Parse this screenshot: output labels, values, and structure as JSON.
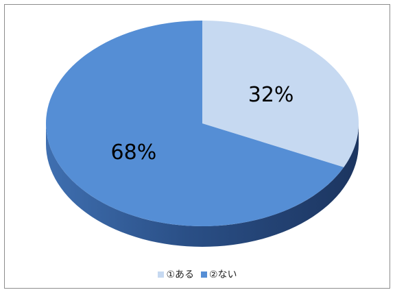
{
  "chart_data": {
    "type": "pie",
    "style": "3d",
    "title": "",
    "categories": [
      "①ある",
      "②ない"
    ],
    "values": [
      32,
      68
    ],
    "labels": [
      "32%",
      "68%"
    ],
    "colors": [
      "#c6d9f1",
      "#558ed5"
    ],
    "legend_position": "bottom"
  }
}
